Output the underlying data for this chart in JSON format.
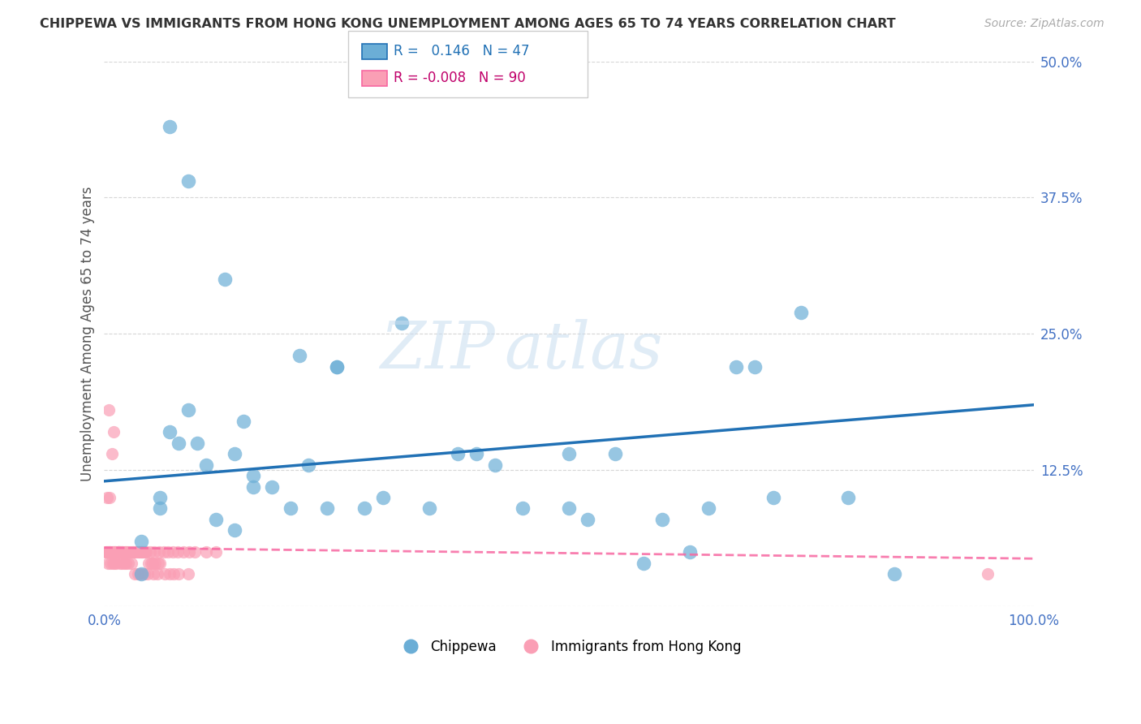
{
  "title": "CHIPPEWA VS IMMIGRANTS FROM HONG KONG UNEMPLOYMENT AMONG AGES 65 TO 74 YEARS CORRELATION CHART",
  "source": "Source: ZipAtlas.com",
  "ylabel": "Unemployment Among Ages 65 to 74 years",
  "xlim": [
    0,
    1.0
  ],
  "ylim": [
    0,
    0.5
  ],
  "yticks": [
    0.0,
    0.125,
    0.25,
    0.375,
    0.5
  ],
  "yticklabels": [
    "",
    "12.5%",
    "25.0%",
    "37.5%",
    "50.0%"
  ],
  "legend_blue_r": "0.146",
  "legend_blue_n": "47",
  "legend_pink_r": "-0.008",
  "legend_pink_n": "90",
  "blue_color": "#6baed6",
  "pink_color": "#fa9fb5",
  "blue_line_color": "#2171b5",
  "pink_line_color": "#f768a1",
  "chippewa_x": [
    0.07,
    0.09,
    0.13,
    0.21,
    0.09,
    0.14,
    0.15,
    0.16,
    0.22,
    0.25,
    0.25,
    0.32,
    0.38,
    0.4,
    0.42,
    0.5,
    0.5,
    0.55,
    0.6,
    0.65,
    0.68,
    0.7,
    0.72,
    0.75,
    0.8,
    0.85,
    0.3,
    0.07,
    0.06,
    0.04,
    0.04,
    0.06,
    0.08,
    0.1,
    0.11,
    0.12,
    0.14,
    0.16,
    0.18,
    0.2,
    0.24,
    0.28,
    0.35,
    0.45,
    0.52,
    0.58,
    0.63
  ],
  "chippewa_y": [
    0.44,
    0.39,
    0.3,
    0.23,
    0.18,
    0.14,
    0.17,
    0.11,
    0.13,
    0.22,
    0.22,
    0.26,
    0.14,
    0.14,
    0.13,
    0.14,
    0.09,
    0.14,
    0.08,
    0.09,
    0.22,
    0.22,
    0.1,
    0.27,
    0.1,
    0.03,
    0.1,
    0.16,
    0.09,
    0.06,
    0.03,
    0.1,
    0.15,
    0.15,
    0.13,
    0.08,
    0.07,
    0.12,
    0.11,
    0.09,
    0.09,
    0.09,
    0.09,
    0.09,
    0.08,
    0.04,
    0.05
  ],
  "hk_x": [
    0.005,
    0.01,
    0.008,
    0.003,
    0.006,
    0.012,
    0.015,
    0.018,
    0.006,
    0.014,
    0.016,
    0.02,
    0.022,
    0.025,
    0.028,
    0.03,
    0.032,
    0.035,
    0.038,
    0.04,
    0.042,
    0.045,
    0.048,
    0.05,
    0.052,
    0.055,
    0.058,
    0.06,
    0.004,
    0.007,
    0.009,
    0.011,
    0.013,
    0.017,
    0.019,
    0.021,
    0.023,
    0.026,
    0.029,
    0.033,
    0.036,
    0.039,
    0.043,
    0.047,
    0.053,
    0.057,
    0.065,
    0.07,
    0.075,
    0.08,
    0.09,
    0.95,
    0.001,
    0.002,
    0.003,
    0.004,
    0.005,
    0.006,
    0.007,
    0.008,
    0.009,
    0.01,
    0.011,
    0.012,
    0.014,
    0.015,
    0.016,
    0.017,
    0.019,
    0.02,
    0.022,
    0.024,
    0.027,
    0.031,
    0.034,
    0.037,
    0.041,
    0.044,
    0.049,
    0.054,
    0.059,
    0.064,
    0.069,
    0.074,
    0.079,
    0.085,
    0.091,
    0.097,
    0.11,
    0.12
  ],
  "hk_y": [
    0.18,
    0.16,
    0.14,
    0.1,
    0.1,
    0.05,
    0.05,
    0.05,
    0.05,
    0.05,
    0.05,
    0.05,
    0.05,
    0.05,
    0.05,
    0.05,
    0.05,
    0.05,
    0.05,
    0.05,
    0.05,
    0.05,
    0.04,
    0.04,
    0.04,
    0.04,
    0.04,
    0.04,
    0.04,
    0.04,
    0.04,
    0.04,
    0.04,
    0.04,
    0.04,
    0.04,
    0.04,
    0.04,
    0.04,
    0.03,
    0.03,
    0.03,
    0.03,
    0.03,
    0.03,
    0.03,
    0.03,
    0.03,
    0.03,
    0.03,
    0.03,
    0.03,
    0.05,
    0.05,
    0.05,
    0.05,
    0.05,
    0.05,
    0.05,
    0.05,
    0.05,
    0.05,
    0.05,
    0.05,
    0.05,
    0.05,
    0.05,
    0.05,
    0.05,
    0.05,
    0.05,
    0.05,
    0.05,
    0.05,
    0.05,
    0.05,
    0.05,
    0.05,
    0.05,
    0.05,
    0.05,
    0.05,
    0.05,
    0.05,
    0.05,
    0.05,
    0.05,
    0.05,
    0.05,
    0.05
  ],
  "blue_trend_x": [
    0.0,
    1.0
  ],
  "blue_trend_y": [
    0.115,
    0.185
  ],
  "pink_trend_x": [
    0.0,
    1.0
  ],
  "pink_trend_y": [
    0.054,
    0.044
  ]
}
